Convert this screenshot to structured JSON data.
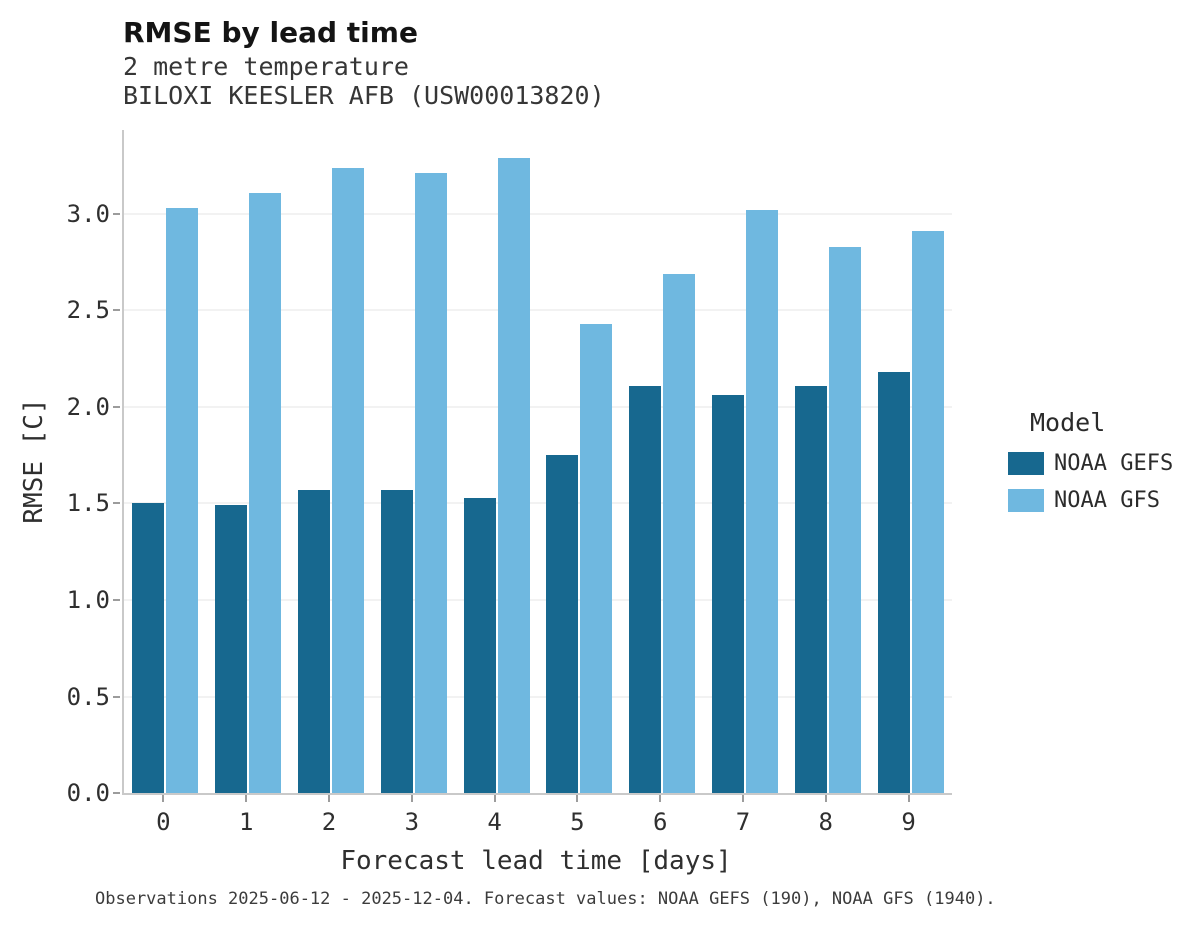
{
  "header": {
    "title": "RMSE by lead time",
    "subtitle1": "2 metre temperature",
    "subtitle2": "BILOXI KEESLER AFB (USW00013820)"
  },
  "caption": "Observations 2025-06-12 - 2025-12-04. Forecast values: NOAA GEFS (190), NOAA GFS (1940).",
  "legend": {
    "title": "Model"
  },
  "colors": {
    "gefs": "#17688f",
    "gfs": "#6fb8e0",
    "gridline": "#e4e4e4",
    "axis": "#c9c9c9"
  },
  "chart_data": {
    "type": "bar",
    "categories": [
      "0",
      "1",
      "2",
      "3",
      "4",
      "5",
      "6",
      "7",
      "8",
      "9"
    ],
    "series": [
      {
        "name": "NOAA GEFS",
        "color": "#17688f",
        "values": [
          1.5,
          1.49,
          1.57,
          1.57,
          1.53,
          1.75,
          2.11,
          2.06,
          2.11,
          2.18
        ]
      },
      {
        "name": "NOAA GFS",
        "color": "#6fb8e0",
        "values": [
          3.03,
          3.11,
          3.24,
          3.21,
          3.29,
          2.43,
          2.69,
          3.02,
          2.83,
          2.91
        ]
      }
    ],
    "title": "RMSE by lead time",
    "subtitle": "2 metre temperature — BILOXI KEESLER AFB (USW00013820)",
    "xlabel": "Forecast lead time [days]",
    "ylabel": "RMSE [C]",
    "ylim": [
      0,
      3.435
    ],
    "yticks": [
      0.0,
      0.5,
      1.0,
      1.5,
      2.0,
      2.5,
      3.0
    ],
    "grid": true,
    "legend_position": "right"
  }
}
